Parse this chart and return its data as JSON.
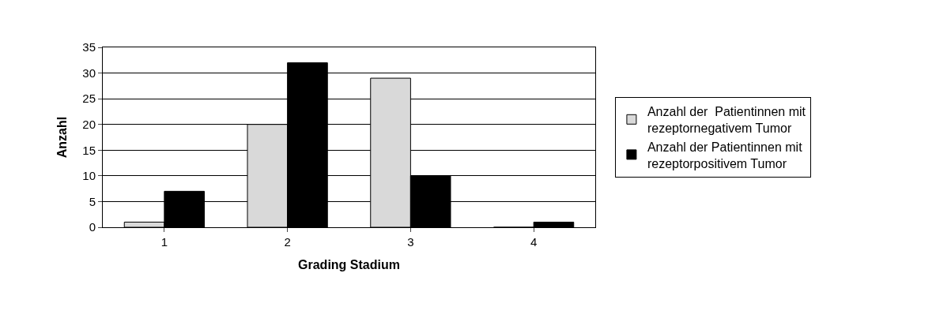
{
  "chart_data": {
    "type": "bar",
    "xlabel": "Grading Stadium",
    "ylabel": "Anzahl",
    "categories": [
      "1",
      "2",
      "3",
      "4"
    ],
    "series": [
      {
        "name": "Anzahl der  Patientinnen mit rezeptornegativem Tumor",
        "color": "#d9d9d9",
        "values": [
          1,
          20,
          29,
          0
        ]
      },
      {
        "name": "Anzahl der Patientinnen mit rezeptorpositivem Tumor",
        "color": "#000000",
        "values": [
          7,
          32,
          10,
          1
        ]
      }
    ],
    "ylim": [
      0,
      35
    ],
    "yticks": [
      0,
      5,
      10,
      15,
      20,
      25,
      30,
      35
    ],
    "grid": "y",
    "legend": "right"
  }
}
